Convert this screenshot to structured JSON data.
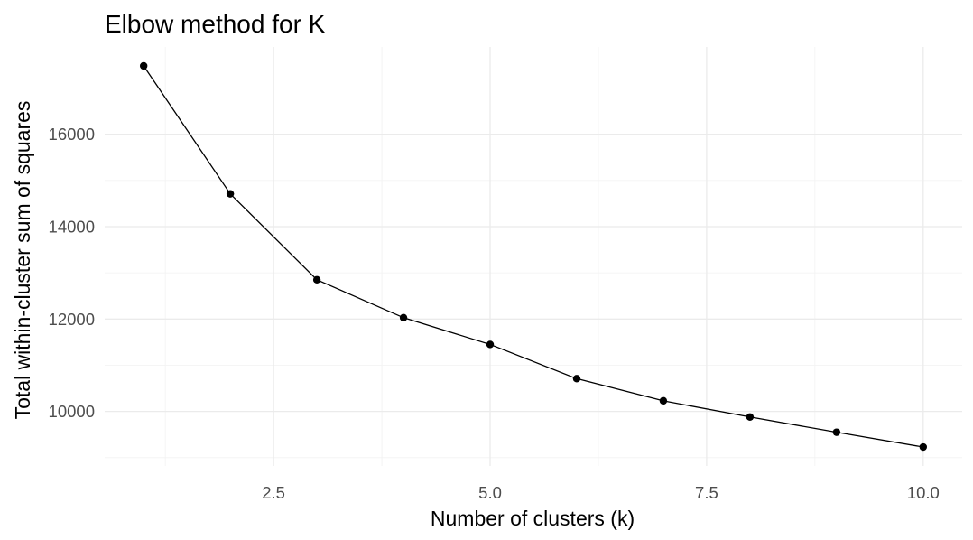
{
  "chart_data": {
    "type": "line",
    "title": "Elbow method for K",
    "xlabel": "Number of clusters (k)",
    "ylabel": "Total within-cluster sum of squares",
    "x": [
      1,
      2,
      3,
      4,
      5,
      6,
      7,
      8,
      9,
      10
    ],
    "series": [
      {
        "values": [
          17480,
          14710,
          12850,
          12030,
          11450,
          10710,
          10230,
          9880,
          9550,
          9230
        ]
      }
    ],
    "xlim": [
      0.55,
      10.45
    ],
    "ylim": [
      8820,
      17890
    ],
    "x_ticks": [
      2.5,
      5.0,
      7.5,
      10.0
    ],
    "x_tick_labels": [
      "2.5",
      "5.0",
      "7.5",
      "10.0"
    ],
    "y_ticks": [
      10000,
      12000,
      14000,
      16000
    ],
    "y_tick_labels": [
      "10000",
      "12000",
      "14000",
      "16000"
    ],
    "x_minor_ticks": [
      1.25,
      3.75,
      6.25,
      8.75
    ],
    "y_minor_ticks": [
      9000,
      11000,
      13000,
      15000,
      17000
    ],
    "grid": true,
    "legend": "none",
    "line_color": "#000000",
    "point_color": "#000000",
    "grid_color": "#ebebeb"
  }
}
